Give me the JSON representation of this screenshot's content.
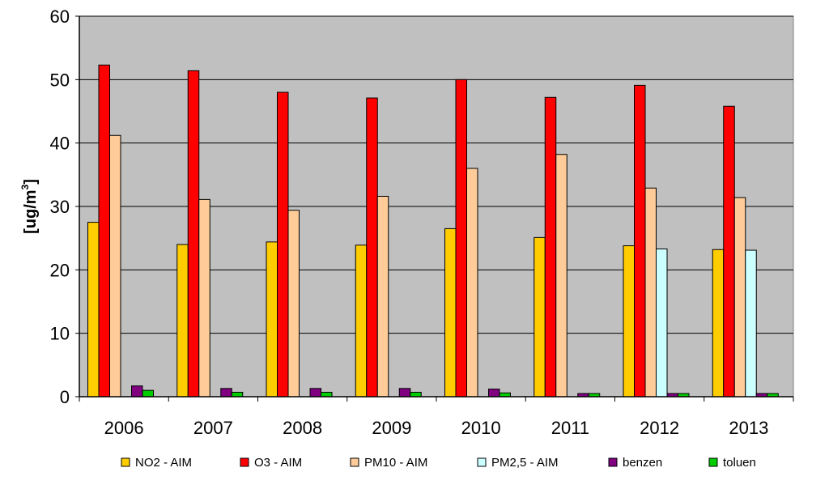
{
  "chart_data": {
    "type": "bar",
    "title": "",
    "xlabel": "",
    "ylabel": "[ug/m",
    "ylabel_sup": "3",
    "ylabel_close": "]",
    "ylim": [
      0,
      60
    ],
    "yticks": [
      0,
      10,
      20,
      30,
      40,
      50,
      60
    ],
    "grid": true,
    "legend_position": "bottom",
    "plot_background": "#c0c0c0",
    "categories": [
      "2006",
      "2007",
      "2008",
      "2009",
      "2010",
      "2011",
      "2012",
      "2013"
    ],
    "series": [
      {
        "name": "NO2 - AIM",
        "color": "#ffcc00",
        "values": [
          27.5,
          24.0,
          24.4,
          23.9,
          26.5,
          25.1,
          23.8,
          23.2
        ]
      },
      {
        "name": "O3 - AIM",
        "color": "#ff0000",
        "values": [
          52.3,
          51.4,
          48.0,
          47.1,
          50.0,
          47.2,
          49.1,
          45.8
        ]
      },
      {
        "name": "PM10 - AIM",
        "color": "#ffcc99",
        "values": [
          41.2,
          31.1,
          29.4,
          31.6,
          36.0,
          38.2,
          32.9,
          31.4
        ]
      },
      {
        "name": "PM2,5 - AIM",
        "color": "#ccffff",
        "values": [
          null,
          null,
          null,
          null,
          null,
          null,
          23.3,
          23.1
        ]
      },
      {
        "name": "benzen",
        "color": "#800080",
        "values": [
          1.7,
          1.3,
          1.3,
          1.3,
          1.2,
          0.5,
          0.5,
          0.5
        ]
      },
      {
        "name": "toluen",
        "color": "#00cc00",
        "values": [
          1.0,
          0.7,
          0.7,
          0.7,
          0.6,
          0.5,
          0.5,
          0.5
        ]
      }
    ]
  }
}
